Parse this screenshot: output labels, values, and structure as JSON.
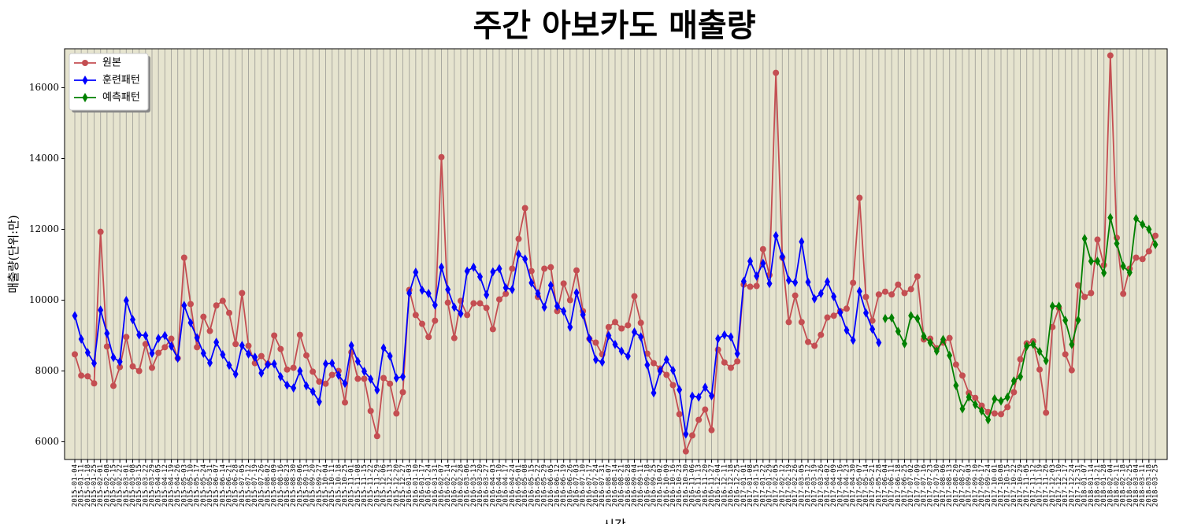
{
  "chart_data": {
    "type": "line",
    "title": "주간 아보카도 매출량",
    "x_label": "시간",
    "y_label": "매출량(단위:만)",
    "categories": [
      "2015-01-04",
      "2015-01-11",
      "2015-01-18",
      "2015-01-25",
      "2015-02-01",
      "2015-02-08",
      "2015-02-15",
      "2015-02-22",
      "2015-03-01",
      "2015-03-08",
      "2015-03-15",
      "2015-03-22",
      "2015-03-29",
      "2015-04-05",
      "2015-04-12",
      "2015-04-19",
      "2015-04-26",
      "2015-05-03",
      "2015-05-10",
      "2015-05-17",
      "2015-05-24",
      "2015-05-31",
      "2015-06-07",
      "2015-06-14",
      "2015-06-21",
      "2015-06-28",
      "2015-07-05",
      "2015-07-12",
      "2015-07-19",
      "2015-07-26",
      "2015-08-02",
      "2015-08-09",
      "2015-08-16",
      "2015-08-23",
      "2015-08-30",
      "2015-09-06",
      "2015-09-13",
      "2015-09-20",
      "2015-09-27",
      "2015-10-04",
      "2015-10-11",
      "2015-10-18",
      "2015-10-25",
      "2015-11-01",
      "2015-11-08",
      "2015-11-15",
      "2015-11-22",
      "2015-11-29",
      "2015-12-06",
      "2015-12-13",
      "2015-12-20",
      "2015-12-27",
      "2016-01-03",
      "2016-01-10",
      "2016-01-17",
      "2016-01-24",
      "2016-01-31",
      "2016-02-07",
      "2016-02-14",
      "2016-02-21",
      "2016-02-28",
      "2016-03-06",
      "2016-03-13",
      "2016-03-20",
      "2016-03-27",
      "2016-04-03",
      "2016-04-10",
      "2016-04-17",
      "2016-04-24",
      "2016-05-01",
      "2016-05-08",
      "2016-05-15",
      "2016-05-22",
      "2016-05-29",
      "2016-06-05",
      "2016-06-12",
      "2016-06-19",
      "2016-06-26",
      "2016-07-03",
      "2016-07-10",
      "2016-07-17",
      "2016-07-24",
      "2016-07-31",
      "2016-08-07",
      "2016-08-14",
      "2016-08-21",
      "2016-08-28",
      "2016-09-04",
      "2016-09-11",
      "2016-09-18",
      "2016-09-25",
      "2016-10-02",
      "2016-10-09",
      "2016-10-16",
      "2016-10-23",
      "2016-10-30",
      "2016-11-06",
      "2016-11-13",
      "2016-11-20",
      "2016-11-27",
      "2016-12-04",
      "2016-12-11",
      "2016-12-18",
      "2016-12-25",
      "2017-01-01",
      "2017-01-08",
      "2017-01-15",
      "2017-01-22",
      "2017-01-29",
      "2017-02-05",
      "2017-02-12",
      "2017-02-19",
      "2017-02-26",
      "2017-03-05",
      "2017-03-12",
      "2017-03-19",
      "2017-03-26",
      "2017-04-02",
      "2017-04-09",
      "2017-04-16",
      "2017-04-23",
      "2017-04-30",
      "2017-05-07",
      "2017-05-14",
      "2017-05-21",
      "2017-05-28",
      "2017-06-04",
      "2017-06-11",
      "2017-06-18",
      "2017-06-25",
      "2017-07-02",
      "2017-07-09",
      "2017-07-16",
      "2017-07-23",
      "2017-07-30",
      "2017-08-06",
      "2017-08-13",
      "2017-08-20",
      "2017-08-27",
      "2017-09-03",
      "2017-09-10",
      "2017-09-17",
      "2017-09-24",
      "2017-10-01",
      "2017-10-08",
      "2017-10-15",
      "2017-10-22",
      "2017-10-29",
      "2017-11-05",
      "2017-11-12",
      "2017-11-19",
      "2017-11-26",
      "2017-12-03",
      "2017-12-10",
      "2017-12-17",
      "2017-12-24",
      "2017-12-31",
      "2018-01-07",
      "2018-01-14",
      "2018-01-21",
      "2018-01-28",
      "2018-02-04",
      "2018-02-11",
      "2018-02-18",
      "2018-02-25",
      "2018-03-04",
      "2018-03-11",
      "2018-03-18",
      "2018-03-25"
    ],
    "series": [
      {
        "name": "원본",
        "color": "#c44e52",
        "marker": "circle",
        "values": [
          8470,
          7870,
          7850,
          7650,
          11930,
          8690,
          7580,
          8110,
          8960,
          8130,
          8000,
          8760,
          8090,
          8510,
          8670,
          8910,
          8360,
          11200,
          9890,
          8670,
          9530,
          9130,
          9850,
          9980,
          9640,
          8760,
          10200,
          8710,
          8220,
          8420,
          8200,
          9000,
          8620,
          8040,
          8090,
          9020,
          8440,
          7980,
          7700,
          7640,
          7890,
          8000,
          7110,
          8530,
          7780,
          7780,
          6870,
          6160,
          7800,
          7640,
          6800,
          7400,
          10290,
          9580,
          9330,
          8960,
          9420,
          14040,
          9930,
          8930,
          9980,
          9580,
          9910,
          9910,
          9780,
          9180,
          10020,
          10180,
          10890,
          11730,
          12600,
          10820,
          10090,
          10890,
          10930,
          9690,
          10470,
          10000,
          10840,
          9690,
          8910,
          8800,
          8470,
          9240,
          9380,
          9200,
          9290,
          10110,
          9360,
          8490,
          8220,
          8070,
          7890,
          7600,
          6780,
          5730,
          6180,
          6620,
          6910,
          6330,
          8600,
          8240,
          8090,
          8270,
          10440,
          10380,
          10400,
          11440,
          10710,
          16420,
          11200,
          9380,
          10130,
          9380,
          8820,
          8710,
          9020,
          9510,
          9560,
          9690,
          9760,
          10490,
          12890,
          10090,
          9420,
          10160,
          10240,
          10160,
          10440,
          10200,
          10310,
          10670,
          8890,
          8910,
          8640,
          8800,
          8930,
          8180,
          7870,
          7380,
          7240,
          7020,
          6840,
          6800,
          6780,
          6980,
          7400,
          8330,
          8780,
          8840,
          8040,
          6820,
          9240,
          9780,
          8470,
          8020,
          10420,
          10090,
          10200,
          11710,
          10990,
          16910,
          11760,
          10180,
          10890,
          11200,
          11160,
          11380,
          11820
        ]
      },
      {
        "name": "훈련패턴",
        "color": "#0000ff",
        "marker": "diamond",
        "values": [
          9560,
          8900,
          8520,
          8220,
          9720,
          9060,
          8380,
          8260,
          9990,
          9450,
          9020,
          9000,
          8500,
          8920,
          9000,
          8700,
          8360,
          9850,
          9360,
          8940,
          8500,
          8230,
          8810,
          8460,
          8160,
          7910,
          8720,
          8480,
          8390,
          7940,
          8180,
          8200,
          7840,
          7600,
          7520,
          8000,
          7580,
          7420,
          7130,
          8200,
          8220,
          7880,
          7650,
          8720,
          8270,
          7990,
          7770,
          7460,
          8650,
          8420,
          7800,
          7840,
          10200,
          10790,
          10280,
          10190,
          9860,
          10930,
          10300,
          9800,
          9620,
          10820,
          10930,
          10660,
          10150,
          10800,
          10890,
          10350,
          10300,
          11300,
          11160,
          10490,
          10190,
          9800,
          10420,
          9830,
          9690,
          9240,
          10210,
          9590,
          8910,
          8320,
          8250,
          9000,
          8750,
          8560,
          8420,
          9100,
          8960,
          8170,
          7380,
          8000,
          8320,
          8020,
          7470,
          6220,
          7290,
          7260,
          7540,
          7300,
          8910,
          9020,
          8960,
          8490,
          10530,
          11100,
          10680,
          11040,
          10470,
          11820,
          11230,
          10560,
          10500,
          11650,
          10510,
          10040,
          10190,
          10520,
          10100,
          9650,
          9150,
          8870,
          10250,
          9640,
          9180,
          8800,
          null,
          null,
          null,
          null,
          null,
          null,
          null,
          null,
          null,
          null,
          null,
          null,
          null,
          null,
          null,
          null,
          null,
          null,
          null,
          null,
          null,
          null,
          null,
          null,
          null,
          null,
          null,
          null,
          null,
          null,
          null,
          null,
          null,
          null,
          null,
          null,
          null,
          null,
          null,
          null,
          null,
          null,
          null
        ]
      },
      {
        "name": "예측패턴",
        "color": "#008000",
        "marker": "diamond",
        "values": [
          null,
          null,
          null,
          null,
          null,
          null,
          null,
          null,
          null,
          null,
          null,
          null,
          null,
          null,
          null,
          null,
          null,
          null,
          null,
          null,
          null,
          null,
          null,
          null,
          null,
          null,
          null,
          null,
          null,
          null,
          null,
          null,
          null,
          null,
          null,
          null,
          null,
          null,
          null,
          null,
          null,
          null,
          null,
          null,
          null,
          null,
          null,
          null,
          null,
          null,
          null,
          null,
          null,
          null,
          null,
          null,
          null,
          null,
          null,
          null,
          null,
          null,
          null,
          null,
          null,
          null,
          null,
          null,
          null,
          null,
          null,
          null,
          null,
          null,
          null,
          null,
          null,
          null,
          null,
          null,
          null,
          null,
          null,
          null,
          null,
          null,
          null,
          null,
          null,
          null,
          null,
          null,
          null,
          null,
          null,
          null,
          null,
          null,
          null,
          null,
          null,
          null,
          null,
          null,
          null,
          null,
          null,
          null,
          null,
          null,
          null,
          null,
          null,
          null,
          null,
          null,
          null,
          null,
          null,
          null,
          null,
          null,
          null,
          null,
          null,
          null,
          9480,
          9500,
          9120,
          8770,
          9560,
          9480,
          8980,
          8800,
          8560,
          8890,
          8440,
          7590,
          6930,
          7260,
          7050,
          6870,
          6620,
          7210,
          7150,
          7260,
          7720,
          7840,
          8700,
          8750,
          8550,
          8290,
          9830,
          9830,
          9430,
          8750,
          9440,
          11740,
          11100,
          11100,
          10770,
          12330,
          11600,
          10960,
          10780,
          12300,
          12140,
          12000,
          11570
        ]
      }
    ],
    "ylim": [
      5500,
      17100
    ],
    "yticks": [
      6000,
      8000,
      10000,
      12000,
      14000,
      16000
    ],
    "grid": "x",
    "legend": "upper left",
    "background": "#e6e4cf"
  }
}
